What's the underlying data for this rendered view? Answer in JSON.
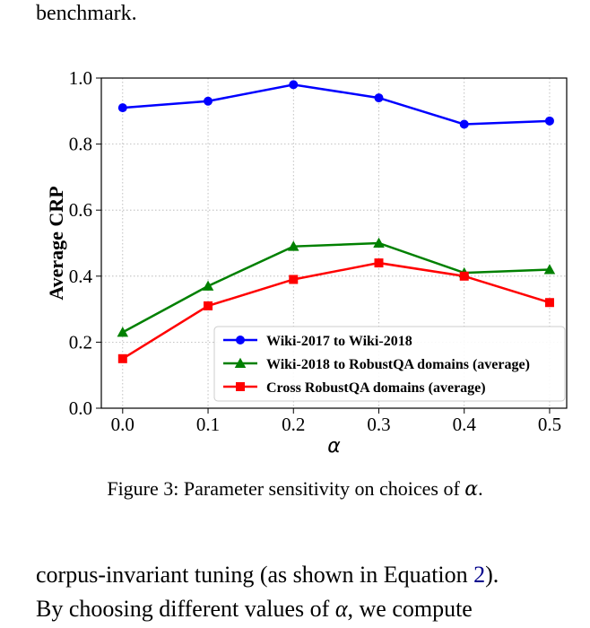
{
  "page_top": {
    "text": "benchmark."
  },
  "caption": {
    "prefix": "Figure 3: Parameter sensitivity on choices of ",
    "symbol": "α",
    "suffix": "."
  },
  "body": {
    "line1_a": "corpus-invariant tuning (as shown in Equation ",
    "line1_ref": "2",
    "line1_b": ").",
    "line2_a": "By choosing different values of ",
    "line2_symbol": "α",
    "line2_b": ", we compute"
  },
  "chart_data": {
    "type": "line",
    "xlabel": "α",
    "ylabel": "Average CRP",
    "x": [
      0.0,
      0.1,
      0.2,
      0.3,
      0.4,
      0.5
    ],
    "x_tick_labels": [
      "0.0",
      "0.1",
      "0.2",
      "0.3",
      "0.4",
      "0.5"
    ],
    "y_ticks": [
      0.0,
      0.2,
      0.4,
      0.6,
      0.8,
      1.0
    ],
    "y_tick_labels": [
      "0.0",
      "0.2",
      "0.4",
      "0.6",
      "0.8",
      "1.0"
    ],
    "xlim": [
      -0.025,
      0.52
    ],
    "ylim": [
      0.0,
      1.0
    ],
    "grid": true,
    "legend_position": "bottom-right",
    "series": [
      {
        "name": "Wiki-2017 to Wiki-2018",
        "color": "#0000ff",
        "marker": "circle",
        "values": [
          0.91,
          0.93,
          0.98,
          0.94,
          0.86,
          0.87
        ]
      },
      {
        "name": "Wiki-2018 to RobustQA domains (average)",
        "color": "#008000",
        "marker": "triangle",
        "values": [
          0.23,
          0.37,
          0.49,
          0.5,
          0.41,
          0.42
        ]
      },
      {
        "name": "Cross RobustQA domains (average)",
        "color": "#ff0000",
        "marker": "square",
        "values": [
          0.15,
          0.31,
          0.39,
          0.44,
          0.4,
          0.32
        ]
      }
    ]
  }
}
